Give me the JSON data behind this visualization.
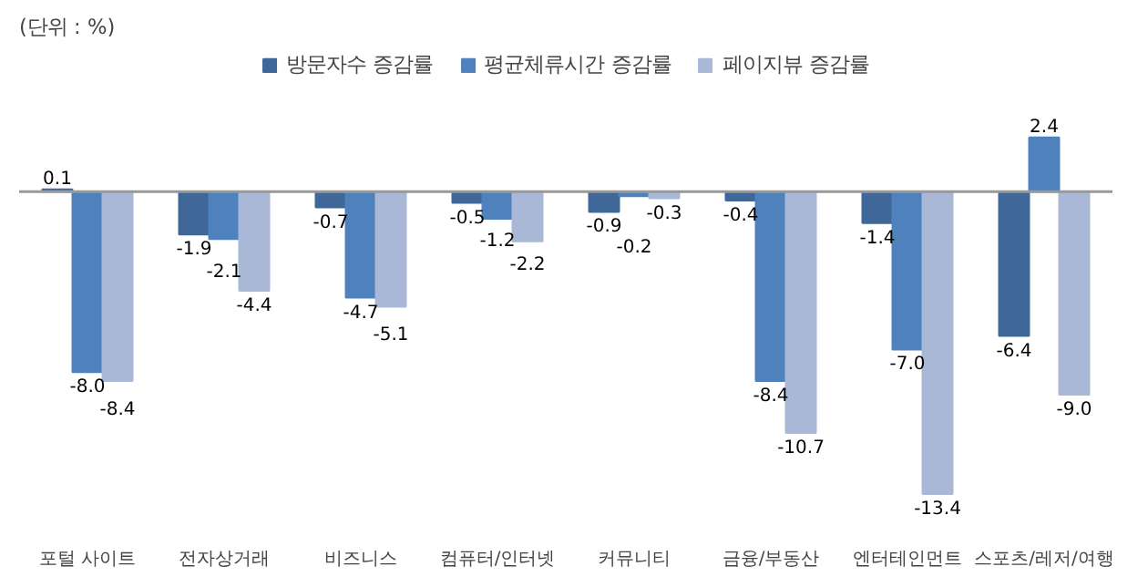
{
  "chart_data": {
    "type": "bar",
    "annotations": [
      "(단위 : %)"
    ],
    "categories": [
      "포털 사이트",
      "전자상거래",
      "비즈니스",
      "컴퓨터/인터넷",
      "커뮤니티",
      "금융/부동산",
      "엔터테인먼트",
      "스포츠/레저/여행"
    ],
    "series": [
      {
        "name": "방문자수 증감률",
        "color": "#3f6899",
        "values": [
          0.1,
          -1.9,
          -0.7,
          -0.5,
          -0.9,
          -0.4,
          -1.4,
          -6.4
        ],
        "value_labels": [
          "0.1",
          "-1.9",
          "-0.7",
          "-0.5",
          "-0.9",
          "-0.4",
          "-1.4",
          "-6.4"
        ]
      },
      {
        "name": "평균체류시간 증감률",
        "color": "#4f81bd",
        "values": [
          -8.0,
          -2.1,
          -4.7,
          -1.2,
          -0.2,
          -8.4,
          -7.0,
          2.4
        ],
        "value_labels": [
          "-8.0",
          "-2.1",
          "-4.7",
          "-1.2",
          "-0.2",
          "-8.4",
          "-7.0",
          "2.4"
        ]
      },
      {
        "name": "페이지뷰 증감률",
        "color": "#a9b8d7",
        "values": [
          -8.4,
          -4.4,
          -5.1,
          -2.2,
          -0.3,
          -10.7,
          -13.4,
          -9.0
        ],
        "value_labels": [
          "-8.4",
          "-4.4",
          "-5.1",
          "-2.2",
          "-0.3",
          "-10.7",
          "-13.4",
          "-9.0"
        ]
      }
    ],
    "legend": "top"
  }
}
